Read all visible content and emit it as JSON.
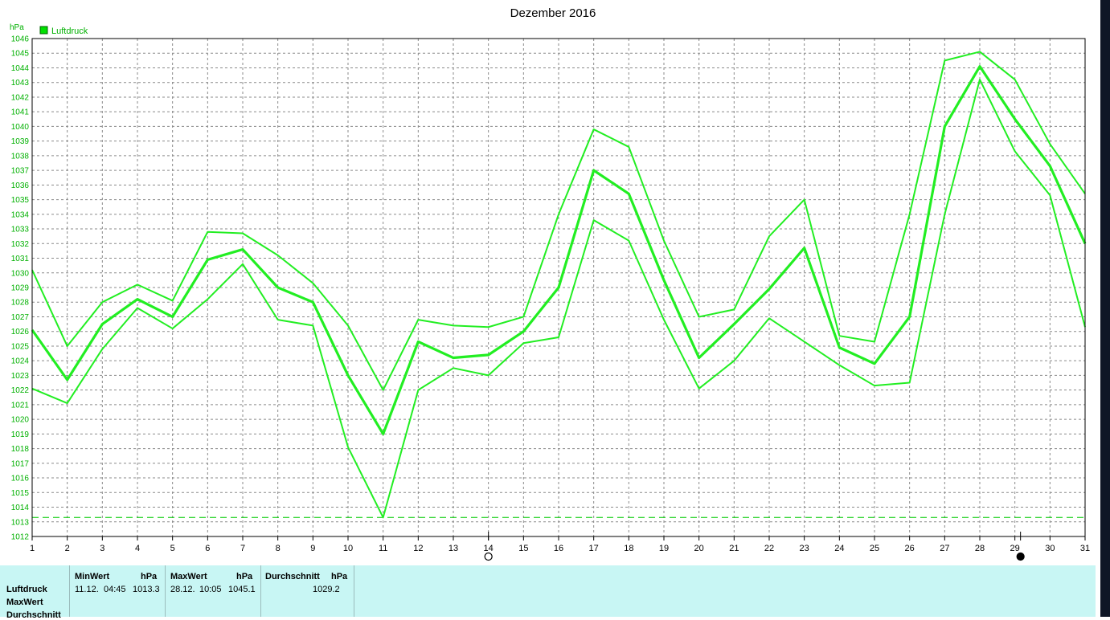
{
  "chart_data": {
    "type": "line",
    "title": "Dezember 2016",
    "ylabel": "hPa",
    "legend": [
      {
        "name": "Luftdruck",
        "color": "#00e000"
      }
    ],
    "legend_position": "top-left",
    "grid": true,
    "ylim": [
      1012,
      1046
    ],
    "yticks": [
      1012,
      1013,
      1014,
      1015,
      1016,
      1017,
      1018,
      1019,
      1020,
      1021,
      1022,
      1023,
      1024,
      1025,
      1026,
      1027,
      1028,
      1029,
      1030,
      1031,
      1032,
      1033,
      1034,
      1035,
      1036,
      1037,
      1038,
      1039,
      1040,
      1041,
      1042,
      1043,
      1044,
      1045,
      1046
    ],
    "x": [
      1,
      2,
      3,
      4,
      5,
      6,
      7,
      8,
      9,
      10,
      11,
      12,
      13,
      14,
      15,
      16,
      17,
      18,
      19,
      20,
      21,
      22,
      23,
      24,
      25,
      26,
      27,
      28,
      29,
      30,
      31
    ],
    "series": [
      {
        "name": "max",
        "values": [
          1030.2,
          1025.0,
          1028.0,
          1029.2,
          1028.1,
          1032.8,
          1032.7,
          1031.2,
          1029.3,
          1026.4,
          1022.0,
          1026.8,
          1026.4,
          1026.3,
          1027.0,
          1034.0,
          1039.8,
          1038.6,
          1032.2,
          1027.0,
          1027.5,
          1032.5,
          1035.0,
          1025.7,
          1025.3,
          1034.0,
          1044.5,
          1045.1,
          1043.2,
          1038.8,
          1035.4
        ]
      },
      {
        "name": "avg",
        "values": [
          1026.1,
          1022.7,
          1026.5,
          1028.2,
          1027.0,
          1030.9,
          1031.6,
          1029.0,
          1028.0,
          1023.0,
          1019.0,
          1025.3,
          1024.2,
          1024.4,
          1026.0,
          1029.0,
          1037.0,
          1035.4,
          1029.5,
          1024.2,
          1026.5,
          1028.9,
          1031.7,
          1024.9,
          1023.8,
          1027.0,
          1040.0,
          1044.1,
          1040.5,
          1037.3,
          1032.0
        ]
      },
      {
        "name": "min",
        "values": [
          1022.1,
          1021.1,
          1024.8,
          1027.6,
          1026.2,
          1028.2,
          1030.6,
          1026.8,
          1026.4,
          1018.1,
          1013.3,
          1022.0,
          1023.5,
          1023.0,
          1025.2,
          1025.6,
          1033.6,
          1032.2,
          1026.8,
          1022.1,
          1024.0,
          1026.9,
          1025.3,
          1023.7,
          1022.3,
          1022.5,
          1034.0,
          1043.2,
          1038.3,
          1035.3,
          1026.3
        ]
      }
    ],
    "reference_line": 1013.3,
    "moon_phases": [
      {
        "x": 14,
        "phase": "full"
      },
      {
        "x": 29,
        "phase": "new"
      }
    ]
  },
  "stats": {
    "rows": [
      "Luftdruck",
      "MaxWert",
      "Durchschnitt"
    ],
    "min_head": "MinWert",
    "max_head": "MaxWert",
    "avg_head": "Durchschnitt",
    "unit": "hPa",
    "min_date": "11.12.",
    "min_time": "04:45",
    "min_value": "1013.3",
    "max_date": "28.12.",
    "max_time": "10:05",
    "max_value": "1045.1",
    "avg_value": "1029.2"
  }
}
